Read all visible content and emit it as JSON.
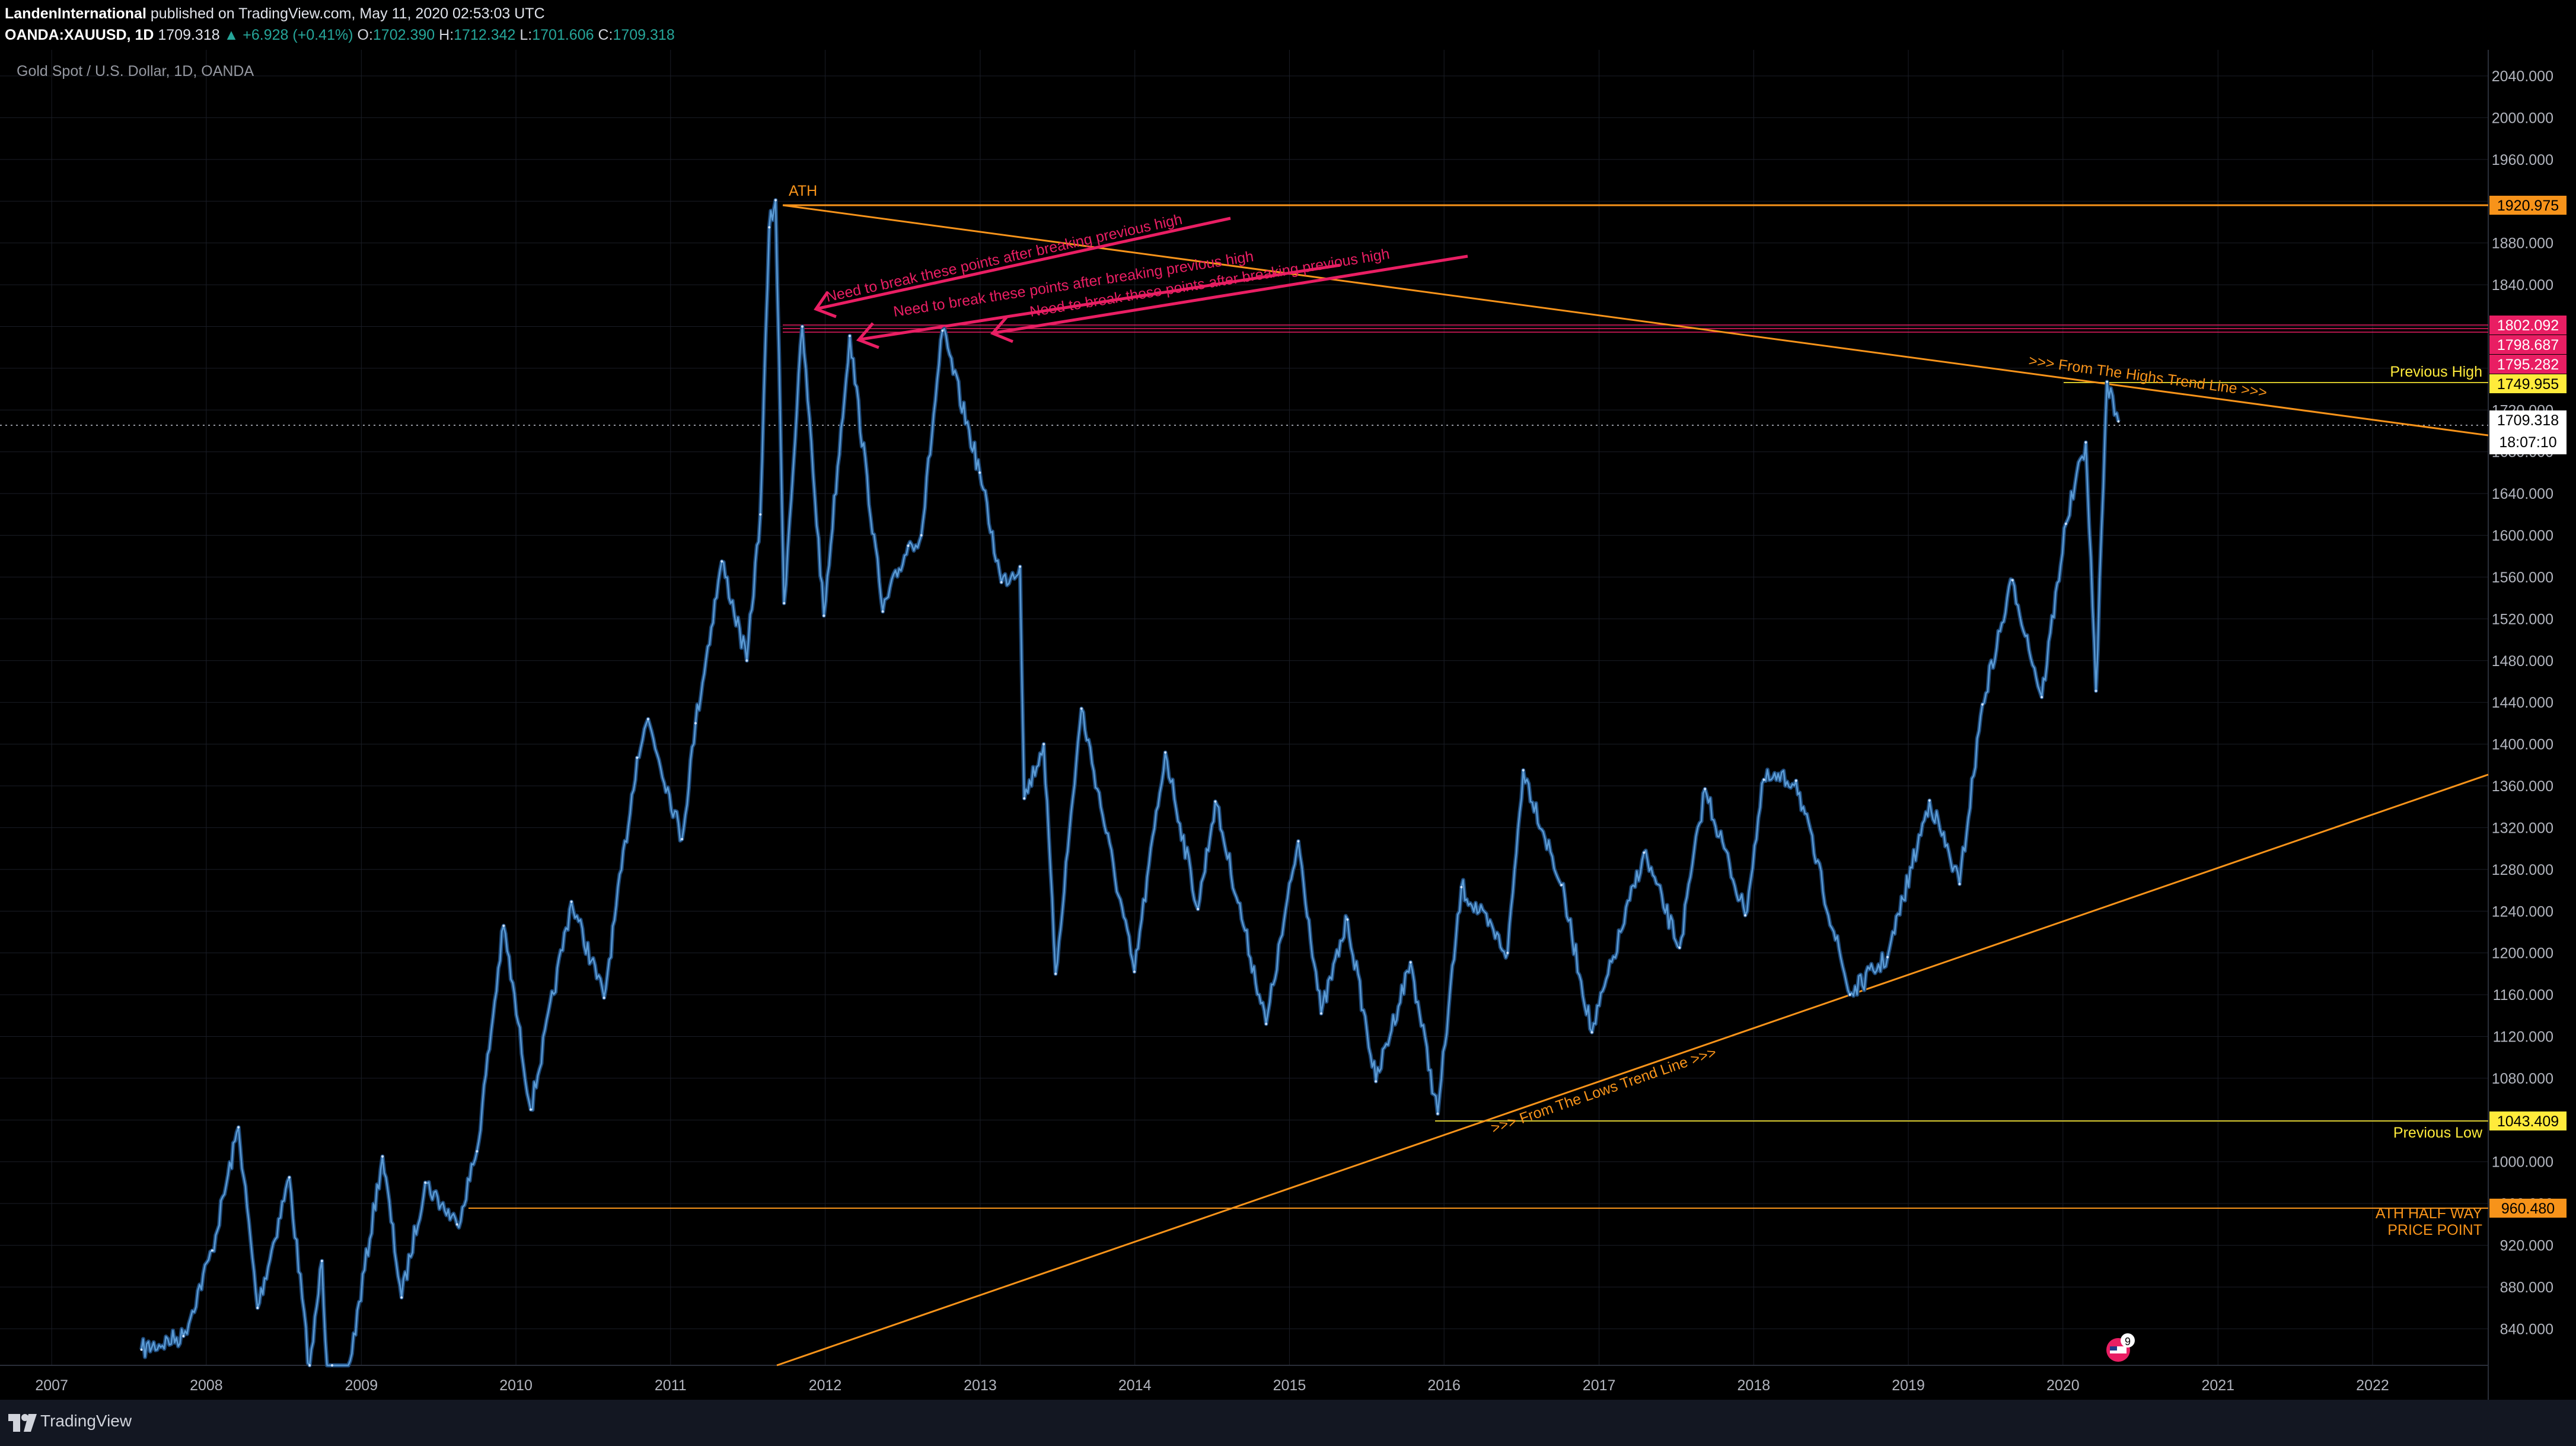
{
  "header": {
    "author": "LandenInternational",
    "published_text": "published on TradingView.com, May 11, 2020 02:53:03 UTC",
    "symbol": "OANDA:XAUUSD, 1D",
    "last": "1709.318",
    "change": "+6.928 (+0.41%)",
    "o_label": "O:",
    "o": "1702.390",
    "h_label": "H:",
    "h": "1712.342",
    "l_label": "L:",
    "l": "1701.606",
    "c_label": "C:",
    "c": "1709.318"
  },
  "footer": {
    "brand": "TradingView"
  },
  "colors": {
    "background": "#000000",
    "price_line": "#5b9bd5",
    "orange": "#f7931a",
    "pink": "#e91e63",
    "yellow": "#ffeb3b",
    "grid": "#1a1d26"
  },
  "chart_data": {
    "type": "line",
    "title": "Gold Spot / U.S. Dollar, 1D, OANDA",
    "y_ticks": [
      840,
      880,
      920,
      960,
      1000,
      1040,
      1080,
      1120,
      1160,
      1200,
      1240,
      1280,
      1320,
      1360,
      1400,
      1440,
      1480,
      1520,
      1560,
      1600,
      1640,
      1680,
      1720,
      1760,
      1800,
      1840,
      1880,
      1920,
      1960,
      2000,
      2040
    ],
    "y_tick_format": "0.000",
    "x_ticks": [
      "2007",
      "2008",
      "2009",
      "2010",
      "2011",
      "2012",
      "2013",
      "2014",
      "2015",
      "2016",
      "2017",
      "2018",
      "2019",
      "2020",
      "2021",
      "2022"
    ],
    "ylim": [
      805,
      2065
    ],
    "xlim": [
      "2006-09-01",
      "2022-10-01"
    ],
    "series": [
      {
        "values": [
          [
            "2007-08-01",
            820
          ],
          [
            "2007-11-08",
            833
          ],
          [
            "2008-01-15",
            915
          ],
          [
            "2008-03-17",
            1033
          ],
          [
            "2008-05-01",
            860
          ],
          [
            "2008-07-15",
            985
          ],
          [
            "2008-09-01",
            800
          ],
          [
            "2008-09-30",
            905
          ],
          [
            "2008-10-24",
            700
          ],
          [
            "2009-02-20",
            1005
          ],
          [
            "2009-04-06",
            870
          ],
          [
            "2009-06-01",
            980
          ],
          [
            "2009-08-15",
            940
          ],
          [
            "2009-10-01",
            1010
          ],
          [
            "2009-12-03",
            1226
          ],
          [
            "2010-02-05",
            1050
          ],
          [
            "2010-05-12",
            1249
          ],
          [
            "2010-07-28",
            1157
          ],
          [
            "2010-10-14",
            1387
          ],
          [
            "2010-11-09",
            1424
          ],
          [
            "2011-01-28",
            1309
          ],
          [
            "2011-03-01",
            1420
          ],
          [
            "2011-05-02",
            1575
          ],
          [
            "2011-06-30",
            1480
          ],
          [
            "2011-08-01",
            1620
          ],
          [
            "2011-08-22",
            1895
          ],
          [
            "2011-09-06",
            1921
          ],
          [
            "2011-09-26",
            1535
          ],
          [
            "2011-11-08",
            1800
          ],
          [
            "2011-12-29",
            1523
          ],
          [
            "2012-02-28",
            1791
          ],
          [
            "2012-05-16",
            1527
          ],
          [
            "2012-07-15",
            1590
          ],
          [
            "2012-08-15",
            1600
          ],
          [
            "2012-10-04",
            1796
          ],
          [
            "2012-12-31",
            1660
          ],
          [
            "2013-02-20",
            1555
          ],
          [
            "2013-04-05",
            1570
          ],
          [
            "2013-04-15",
            1348
          ],
          [
            "2013-05-31",
            1400
          ],
          [
            "2013-06-28",
            1180
          ],
          [
            "2013-08-28",
            1434
          ],
          [
            "2013-12-31",
            1182
          ],
          [
            "2014-03-14",
            1392
          ],
          [
            "2014-05-30",
            1242
          ],
          [
            "2014-07-10",
            1345
          ],
          [
            "2014-11-07",
            1132
          ],
          [
            "2015-01-22",
            1307
          ],
          [
            "2015-03-17",
            1142
          ],
          [
            "2015-05-18",
            1232
          ],
          [
            "2015-07-24",
            1077
          ],
          [
            "2015-10-14",
            1191
          ],
          [
            "2015-12-17",
            1046
          ],
          [
            "2016-02-11",
            1263
          ],
          [
            "2016-05-30",
            1200
          ],
          [
            "2016-07-06",
            1375
          ],
          [
            "2016-10-04",
            1265
          ],
          [
            "2016-12-15",
            1124
          ],
          [
            "2017-04-17",
            1296
          ],
          [
            "2017-07-10",
            1205
          ],
          [
            "2017-09-08",
            1357
          ],
          [
            "2017-12-12",
            1236
          ],
          [
            "2018-01-25",
            1366
          ],
          [
            "2018-04-11",
            1365
          ],
          [
            "2018-08-16",
            1160
          ],
          [
            "2018-11-13",
            1196
          ],
          [
            "2019-02-20",
            1346
          ],
          [
            "2019-05-02",
            1266
          ],
          [
            "2019-06-25",
            1438
          ],
          [
            "2019-09-04",
            1557
          ],
          [
            "2019-11-12",
            1445
          ],
          [
            "2020-01-08",
            1611
          ],
          [
            "2020-02-24",
            1689
          ],
          [
            "2020-03-19",
            1451
          ],
          [
            "2020-04-14",
            1747
          ],
          [
            "2020-05-11",
            1709
          ]
        ]
      }
    ],
    "last_price": "1709.318",
    "countdown": "18:07:10"
  },
  "annotations": {
    "ath_label": "ATH",
    "previous_high_label": "Previous High",
    "previous_low_label": "Previous Low",
    "half_way_label_1": "ATH HALF WAY",
    "half_way_label_2": "PRICE POINT",
    "highs_trend_label": ">>> From The Highs Trend Line >>>",
    "lows_trend_label": ">>> From The Lows Trend Line >>>",
    "break_note": "Need to break these points after breaking previous high",
    "badges": [
      "1920.975",
      "1802.092",
      "1798.687",
      "1795.282",
      "1749.955",
      "1043.409",
      "960.480"
    ],
    "event_flag_count": "9"
  }
}
